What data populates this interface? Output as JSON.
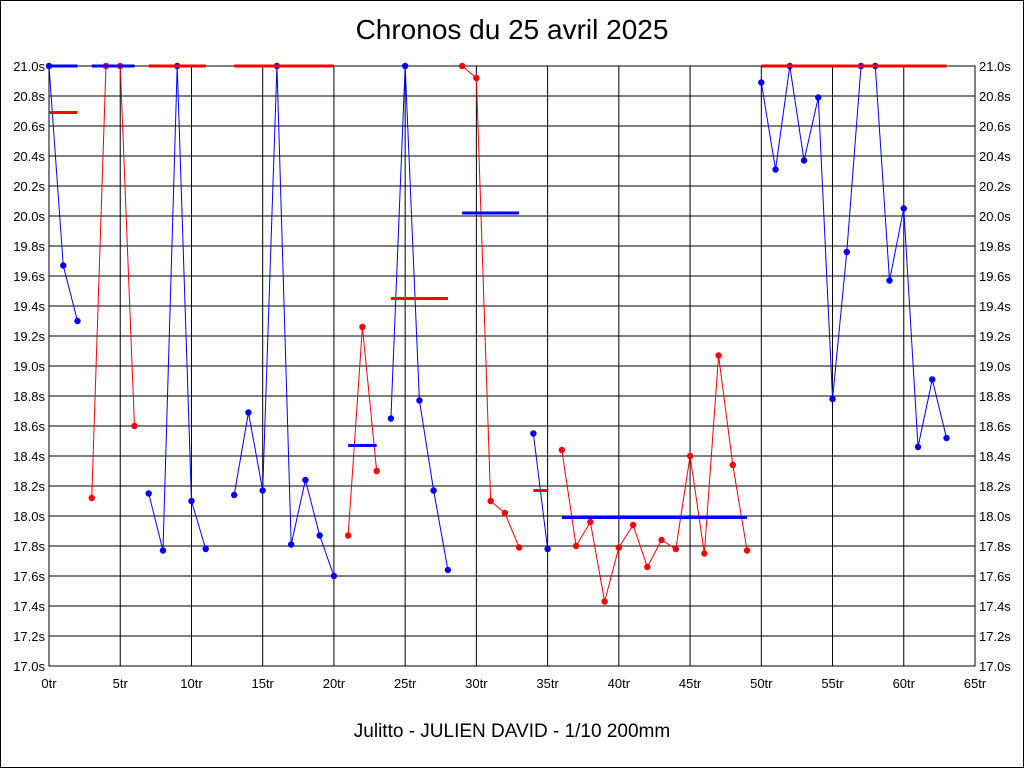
{
  "chart_data": {
    "type": "line",
    "title": "Chronos du 25 avril 2025",
    "footer": "Julitto - JULIEN DAVID - 1/10 200mm",
    "x_unit": "tr",
    "y_unit": "s",
    "xlim": [
      0,
      65
    ],
    "ylim": [
      17.0,
      21.0
    ],
    "x_ticks": [
      0,
      5,
      10,
      15,
      20,
      25,
      30,
      35,
      40,
      45,
      50,
      55,
      60,
      65
    ],
    "x_tick_labels": [
      "0tr",
      "5tr",
      "10tr",
      "15tr",
      "20tr",
      "25tr",
      "30tr",
      "35tr",
      "40tr",
      "45tr",
      "50tr",
      "55tr",
      "60tr",
      "65tr"
    ],
    "y_ticks": [
      17.0,
      17.2,
      17.4,
      17.6,
      17.8,
      18.0,
      18.2,
      18.4,
      18.6,
      18.8,
      19.0,
      19.2,
      19.4,
      19.6,
      19.8,
      20.0,
      20.2,
      20.4,
      20.6,
      20.8,
      21.0
    ],
    "y_tick_labels": [
      "17.0s",
      "17.2s",
      "17.4s",
      "17.6s",
      "17.8s",
      "18.0s",
      "18.2s",
      "18.4s",
      "18.6s",
      "18.8s",
      "19.0s",
      "19.2s",
      "19.4s",
      "19.6s",
      "19.8s",
      "20.0s",
      "20.2s",
      "20.4s",
      "20.6s",
      "20.8s",
      "21.0s"
    ],
    "grid": true,
    "colors": {
      "blue": "#0000ff",
      "red": "#ff0000"
    },
    "series": [
      {
        "color": "blue",
        "points": [
          [
            0,
            21.0
          ],
          [
            1,
            19.67
          ],
          [
            2,
            19.3
          ]
        ],
        "average": {
          "x": [
            0,
            2
          ],
          "y": 21.0
        }
      },
      {
        "color": "red",
        "points": [
          [
            3,
            18.12
          ],
          [
            4,
            21.0
          ],
          [
            5,
            21.0
          ],
          [
            6,
            18.6
          ]
        ],
        "average": {
          "x": [
            0,
            2
          ],
          "y": 20.69
        }
      },
      {
        "color": "blue",
        "points": [
          [
            7,
            18.15
          ],
          [
            8,
            17.77
          ],
          [
            9,
            21.0
          ],
          [
            10,
            18.1
          ],
          [
            11,
            17.78
          ]
        ],
        "average": {
          "x": [
            3,
            6
          ],
          "y": 21.0
        }
      },
      {
        "color": "red",
        "points": [],
        "average": {
          "x": [
            7,
            11
          ],
          "y": 21.0
        }
      },
      {
        "color": "blue",
        "points": [
          [
            13,
            18.14
          ],
          [
            14,
            18.69
          ],
          [
            15,
            18.17
          ],
          [
            16,
            21.0
          ],
          [
            17,
            17.81
          ],
          [
            18,
            18.24
          ],
          [
            19,
            17.87
          ],
          [
            20,
            17.6
          ]
        ],
        "average": null
      },
      {
        "color": "red",
        "points": [],
        "average": {
          "x": [
            13,
            20
          ],
          "y": 21.0
        }
      },
      {
        "color": "red",
        "points": [
          [
            21,
            17.87
          ],
          [
            22,
            19.26
          ],
          [
            23,
            18.3
          ]
        ],
        "average": null
      },
      {
        "color": "blue",
        "points": [],
        "average": {
          "x": [
            21,
            23
          ],
          "y": 18.47
        }
      },
      {
        "color": "blue",
        "points": [
          [
            24,
            18.65
          ],
          [
            25,
            21.0
          ],
          [
            26,
            18.77
          ],
          [
            27,
            18.17
          ],
          [
            28,
            17.64
          ]
        ],
        "average": null
      },
      {
        "color": "red",
        "points": [],
        "average": {
          "x": [
            24,
            28
          ],
          "y": 19.45
        }
      },
      {
        "color": "red",
        "points": [
          [
            29,
            21.0
          ],
          [
            30,
            20.92
          ],
          [
            31,
            18.1
          ],
          [
            32,
            18.02
          ],
          [
            33,
            17.79
          ]
        ],
        "average": null
      },
      {
        "color": "blue",
        "points": [],
        "average": {
          "x": [
            29,
            33
          ],
          "y": 20.02
        }
      },
      {
        "color": "blue",
        "points": [
          [
            34,
            18.55
          ],
          [
            35,
            17.78
          ]
        ],
        "average": null
      },
      {
        "color": "red",
        "points": [],
        "average": {
          "x": [
            34,
            35
          ],
          "y": 18.17
        }
      },
      {
        "color": "red",
        "points": [
          [
            36,
            18.44
          ],
          [
            37,
            17.8
          ],
          [
            38,
            17.96
          ],
          [
            39,
            17.43
          ],
          [
            40,
            17.79
          ],
          [
            41,
            17.94
          ],
          [
            42,
            17.66
          ],
          [
            43,
            17.84
          ],
          [
            44,
            17.78
          ],
          [
            45,
            18.4
          ],
          [
            46,
            17.75
          ],
          [
            47,
            19.07
          ],
          [
            48,
            18.34
          ],
          [
            49,
            17.77
          ]
        ],
        "average": null
      },
      {
        "color": "blue",
        "points": [],
        "average": {
          "x": [
            36,
            49
          ],
          "y": 17.99
        }
      },
      {
        "color": "blue",
        "points": [
          [
            50,
            20.89
          ],
          [
            51,
            20.31
          ],
          [
            52,
            21.0
          ],
          [
            53,
            20.37
          ],
          [
            54,
            20.79
          ],
          [
            55,
            18.78
          ],
          [
            56,
            19.76
          ],
          [
            57,
            21.0
          ],
          [
            58,
            21.0
          ],
          [
            59,
            19.57
          ],
          [
            60,
            20.05
          ],
          [
            61,
            18.46
          ],
          [
            62,
            18.91
          ],
          [
            63,
            18.52
          ]
        ],
        "average": null
      },
      {
        "color": "red",
        "points": [],
        "average": {
          "x": [
            50,
            63
          ],
          "y": 21.0
        }
      }
    ]
  }
}
